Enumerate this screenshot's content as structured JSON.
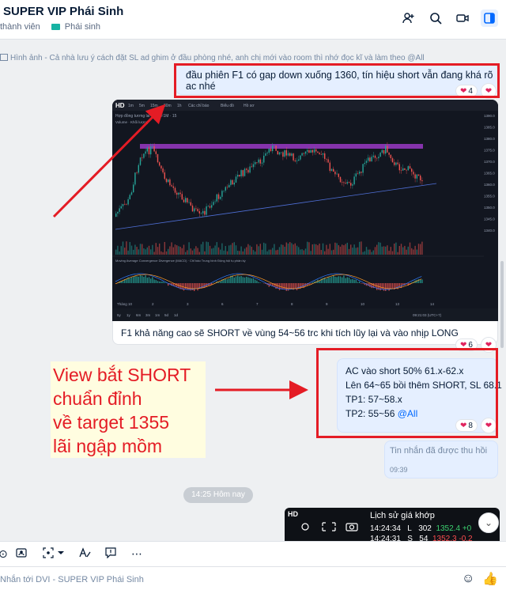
{
  "header": {
    "title": "SUPER VIP Phái Sinh",
    "members": "thành viên",
    "category_tag": "Phái sinh",
    "icons": [
      "add-member-icon",
      "search-icon",
      "video-call-icon",
      "sidebar-toggle-icon"
    ]
  },
  "notice": "Hình ảnh - Cả nhà lưu ý cách đặt SL ad ghim ở đầu phòng nhé, anh chị mới vào room thì nhớ đọc kĩ và làm theo @All",
  "messages": [
    {
      "text": "đầu phiên F1 có gap down xuống 1360, tín hiệu short vẫn đang khá rõ ac nhé",
      "reactions": "4"
    },
    {
      "caption": "F1 khả năng cao sẽ SHORT về vùng 54~56 trc khi tích lũy lại và vào nhịp LONG",
      "reactions": "6"
    },
    {
      "lines": [
        "AC vào short 50% 61.x-62.x",
        "Lên 64~65 bồi thêm SHORT, SL 68.1",
        "TP1: 57~58.x",
        "TP2: 55~56 "
      ],
      "mention": "@All",
      "reactions": "8"
    },
    {
      "recalled_text": "Tin nhắn đã được thu hồi",
      "time": "09:39"
    }
  ],
  "date_chip": "14:25 Hôm nay",
  "annotation": {
    "lines": [
      "View bắt SHORT",
      "chuẩn đỉnh",
      "về target 1355",
      "lãi ngập mồm"
    ],
    "color": "#e41c25"
  },
  "chart_image": {
    "logo": "HD",
    "toolbar": [
      "1m",
      "5m",
      "15m",
      "30m",
      "1h",
      "Các chỉ báo",
      "Biểu đồ",
      "Hồ sơ"
    ],
    "title": "Hợp đồng tương lai VN30F1M · 15",
    "volume_label": "Volume · Khối lượng",
    "macd_label": "Moving Average Convergence Divergence (MACD) · Chỉ báo Trung bình Động hội tụ phân kỳ",
    "x_ticks": [
      "Tháng 10",
      "2",
      "3",
      "6",
      "7",
      "8",
      "9",
      "10",
      "13",
      "14"
    ],
    "y_ticks": [
      "1390.0",
      "1385.0",
      "1380.0",
      "1375.0",
      "1370.0",
      "1365.0",
      "1360.0",
      "1355.0",
      "1350.0",
      "1345.0",
      "1340.0"
    ],
    "bottom_tools": [
      "5y",
      "1y",
      "6m",
      "3m",
      "1m",
      "5d",
      "1d"
    ],
    "bottom_time": "09:21:03 (UTC+7)"
  },
  "trade_panel": {
    "logo": "HD",
    "title": "Lịch sử giá khớp",
    "rows": [
      {
        "time": "14:24:34",
        "side": "L",
        "volume": "302",
        "price": "1352.4",
        "change": "+0"
      },
      {
        "time": "14:24:31",
        "side": "S",
        "volume": "54",
        "price": "1352.3",
        "change": "-0.2"
      }
    ]
  },
  "composer": {
    "placeholder": "Nhắn tới DVI - SUPER VIP Phái Sinh",
    "toolbar_icons": [
      "sticker-icon",
      "contact-card-icon",
      "screenshot-icon",
      "format-text-icon",
      "quick-message-icon",
      "more-icon"
    ]
  },
  "colors": {
    "accent": "#0068ff",
    "bubble": "#e5efff",
    "red_box": "#e41c25",
    "tag": "#17b3a3"
  }
}
